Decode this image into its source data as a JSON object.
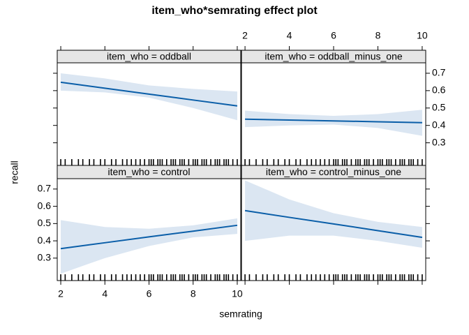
{
  "chart_data": {
    "type": "line",
    "title": "item_who*semrating effect plot",
    "xlabel": "semrating",
    "ylabel": "recall",
    "xlim": [
      1.84,
      10.16
    ],
    "ylim": [
      0.17,
      0.76
    ],
    "xticks": [
      2,
      4,
      6,
      8,
      10
    ],
    "yticks": [
      0.3,
      0.4,
      0.5,
      0.6,
      0.7
    ],
    "color": "#0a5ea8",
    "band_color": "#dbe6f2",
    "strip_color": "#e6e6e6",
    "x": [
      2,
      4,
      6,
      8,
      10
    ],
    "rug": [
      2,
      2.2,
      2.5,
      2.8,
      3,
      3.3,
      3.5,
      3.8,
      4,
      4.3,
      4.5,
      4.8,
      5,
      5.2,
      5.4,
      5.6,
      5.8,
      6,
      6.1,
      6.2,
      6.4,
      6.5,
      6.6,
      6.8,
      7,
      7.1,
      7.2,
      7.4,
      7.5,
      7.6,
      7.8,
      8,
      8.1,
      8.2,
      8.4,
      8.5,
      8.6,
      8.8,
      9,
      9.1,
      9.2,
      9.4,
      9.5,
      9.6,
      9.8,
      10
    ],
    "panels": [
      {
        "title": "item_who = oddball",
        "values": [
          0.648,
          0.614,
          0.58,
          0.546,
          0.512
        ],
        "lower": [
          0.6,
          0.59,
          0.56,
          0.5,
          0.43
        ],
        "upper": [
          0.7,
          0.67,
          0.63,
          0.61,
          0.595
        ]
      },
      {
        "title": "item_who = oddball_minus_one",
        "values": [
          0.436,
          0.431,
          0.426,
          0.421,
          0.416
        ],
        "lower": [
          0.39,
          0.4,
          0.405,
          0.385,
          0.34
        ],
        "upper": [
          0.485,
          0.465,
          0.455,
          0.465,
          0.49
        ]
      },
      {
        "title": "item_who = control",
        "values": [
          0.355,
          0.389,
          0.423,
          0.456,
          0.49
        ],
        "lower": [
          0.21,
          0.3,
          0.37,
          0.42,
          0.44
        ],
        "upper": [
          0.52,
          0.48,
          0.47,
          0.49,
          0.53
        ]
      },
      {
        "title": "item_who = control_minus_one",
        "values": [
          0.575,
          0.536,
          0.498,
          0.459,
          0.42
        ],
        "lower": [
          0.4,
          0.43,
          0.43,
          0.4,
          0.36
        ],
        "upper": [
          0.75,
          0.64,
          0.56,
          0.51,
          0.48
        ]
      }
    ]
  }
}
